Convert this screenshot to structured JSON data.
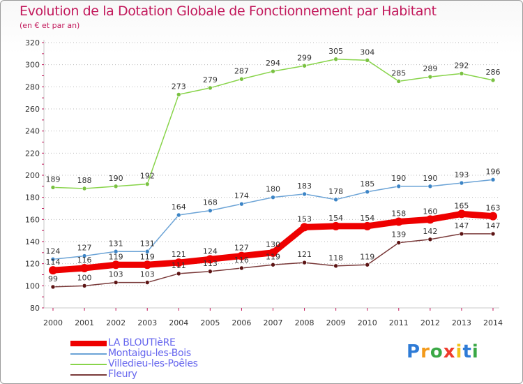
{
  "header": {
    "title": "Evolution de la Dotation Globale de Fonctionnement par Habitant",
    "subtitle": "(en € et par an)"
  },
  "logo": {
    "letters": [
      "P",
      "r",
      "o",
      "x",
      "i",
      "t",
      "i"
    ],
    "colors": [
      "#2e7bd6",
      "#f39a1b",
      "#3aa845",
      "#ef3b2c",
      "#f2c318",
      "#2e7bd6",
      "#3aa845"
    ]
  },
  "chart_data": {
    "type": "line",
    "title": "Evolution de la Dotation Globale de Fonctionnement par Habitant",
    "subtitle": "(en € et par an)",
    "xlabel": "",
    "ylabel": "",
    "x": [
      2000,
      2001,
      2002,
      2003,
      2004,
      2005,
      2006,
      2007,
      2008,
      2009,
      2010,
      2011,
      2012,
      2013,
      2014
    ],
    "ylim": [
      80,
      320
    ],
    "yticks": [
      80,
      100,
      120,
      140,
      160,
      180,
      200,
      220,
      240,
      260,
      280,
      300,
      320
    ],
    "grid": "horizontal-dotted",
    "legend_position": "bottom-left",
    "series": [
      {
        "name": "Villedieu-les-Poêles",
        "color": "#88d44a",
        "marker": "#7ac142",
        "width": 1.5,
        "values": [
          189,
          188,
          190,
          192,
          273,
          279,
          287,
          294,
          299,
          305,
          304,
          285,
          289,
          292,
          286
        ]
      },
      {
        "name": "Montaigu-les-Bois",
        "color": "#6ba3d6",
        "marker": "#3d85c6",
        "width": 1.5,
        "values": [
          124,
          127,
          131,
          131,
          164,
          168,
          174,
          180,
          183,
          178,
          185,
          190,
          190,
          193,
          196
        ]
      },
      {
        "name": "Fleury",
        "color": "#7a3a3a",
        "marker": "#5c1414",
        "width": 1.5,
        "values": [
          99,
          100,
          103,
          103,
          111,
          113,
          116,
          119,
          121,
          118,
          119,
          139,
          142,
          147,
          147
        ]
      },
      {
        "name": "LA BLOUTIèRE",
        "color": "#ee0000",
        "marker": "#ee0000",
        "width": 9,
        "values": [
          114,
          116,
          119,
          119,
          121,
          124,
          127,
          130,
          153,
          154,
          154,
          158,
          160,
          165,
          163
        ]
      }
    ],
    "legend_order": [
      "LA BLOUTIèRE",
      "Montaigu-les-Bois",
      "Villedieu-les-Poêles",
      "Fleury"
    ]
  }
}
